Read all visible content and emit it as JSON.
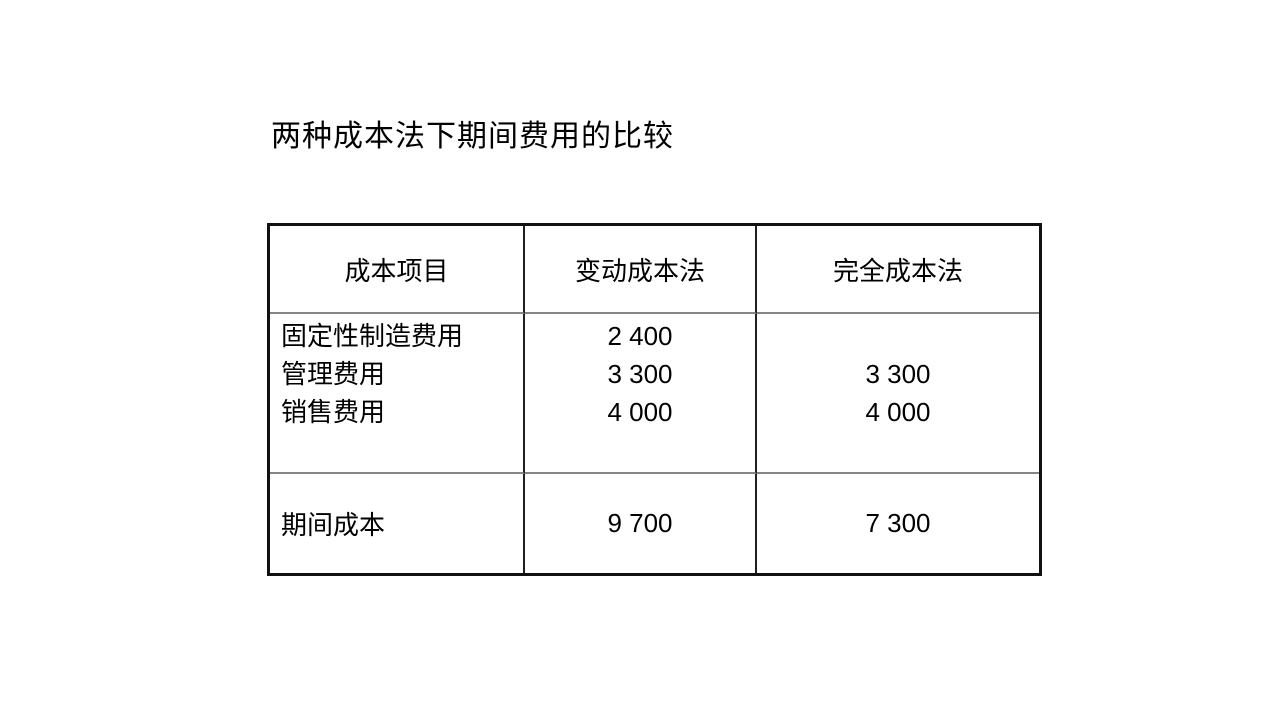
{
  "page": {
    "background_color": "#ffffff",
    "text_color": "#000000",
    "table_outer_border_color": "#111111",
    "table_horizontal_rule_color": "#858585",
    "table_vertical_rule_color": "#1f1f1f"
  },
  "title": "两种成本法下期间费用的比较",
  "table": {
    "headers": [
      "成本项目",
      "变动成本法",
      "完全成本法"
    ],
    "detail_row": {
      "items": [
        "固定性制造费用",
        "管理费用",
        "销售费用"
      ],
      "variable_values": [
        "2 400",
        "3 300",
        "4 000"
      ],
      "full_values": [
        "",
        "3 300",
        "4 000"
      ]
    },
    "total_row": {
      "label": "期间成本",
      "variable_value": "9 700",
      "full_value": "7 300"
    }
  },
  "chart_data": {
    "type": "table",
    "title": "两种成本法下期间费用的比较",
    "columns": [
      "成本项目",
      "变动成本法",
      "完全成本法"
    ],
    "rows": [
      [
        "固定性制造费用",
        2400,
        null
      ],
      [
        "管理费用",
        3300,
        3300
      ],
      [
        "销售费用",
        4000,
        4000
      ],
      [
        "期间成本",
        9700,
        7300
      ]
    ]
  }
}
